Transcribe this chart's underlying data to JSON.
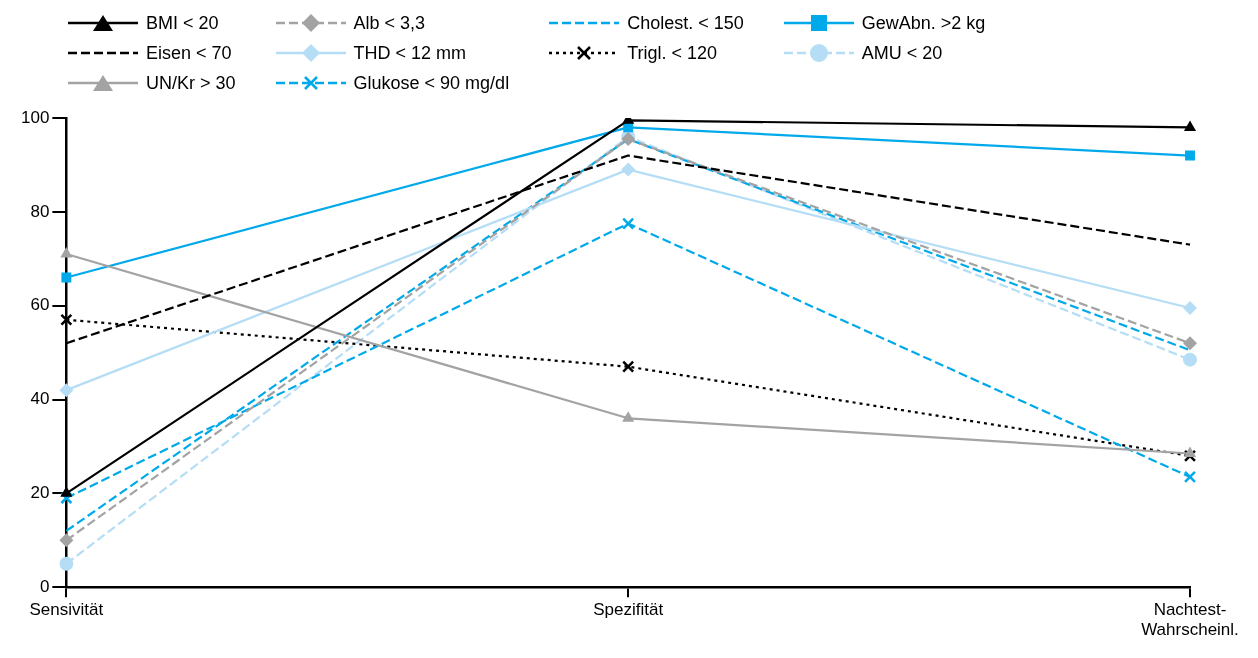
{
  "chart_data": {
    "type": "line",
    "categories": [
      "Sensivität",
      "Spezifität",
      "Nachtest-Wahrscheinl."
    ],
    "ylim": [
      0,
      100
    ],
    "yticks": [
      0,
      20,
      40,
      60,
      80,
      100
    ],
    "grid": false,
    "legend": "top",
    "series": [
      {
        "name": "BMI < 20",
        "color": "#000000",
        "values": [
          20,
          99.5,
          98
        ],
        "marker": "triangle",
        "line_style": "solid"
      },
      {
        "name": "Eisen < 70",
        "color": "#000000",
        "values": [
          52,
          92,
          73
        ],
        "marker": "none",
        "line_style": "dashed"
      },
      {
        "name": "UN/Kr > 30",
        "color": "#a3a3a3",
        "values": [
          71,
          36,
          28.5
        ],
        "marker": "triangle",
        "line_style": "solid"
      },
      {
        "name": "Alb < 3,3",
        "color": "#a3a3a3",
        "values": [
          10,
          95.5,
          52
        ],
        "marker": "diamond",
        "line_style": "dashed"
      },
      {
        "name": "THD < 12 mm",
        "color": "#b5ddf5",
        "values": [
          42,
          89,
          59.5
        ],
        "marker": "diamond",
        "line_style": "solid"
      },
      {
        "name": "Glukose < 90 mg/dl",
        "color": "#00a9e9",
        "values": [
          19,
          77.5,
          23.5
        ],
        "marker": "cross",
        "line_style": "dashed"
      },
      {
        "name": "Cholest. < 150",
        "color": "#00a9e9",
        "values": [
          12,
          95.5,
          50.5
        ],
        "marker": "none",
        "line_style": "dashed"
      },
      {
        "name": "Trigl. < 120",
        "color": "#000000",
        "values": [
          57,
          47,
          28
        ],
        "marker": "cross",
        "line_style": "dotted"
      },
      {
        "name": "GewAbn. >2 kg",
        "color": "#00a9e9",
        "values": [
          66,
          98,
          92
        ],
        "marker": "square",
        "line_style": "solid"
      },
      {
        "name": "AMU < 20",
        "color": "#b5ddf5",
        "values": [
          5,
          96,
          48.5
        ],
        "marker": "circle",
        "line_style": "dashed"
      }
    ]
  }
}
